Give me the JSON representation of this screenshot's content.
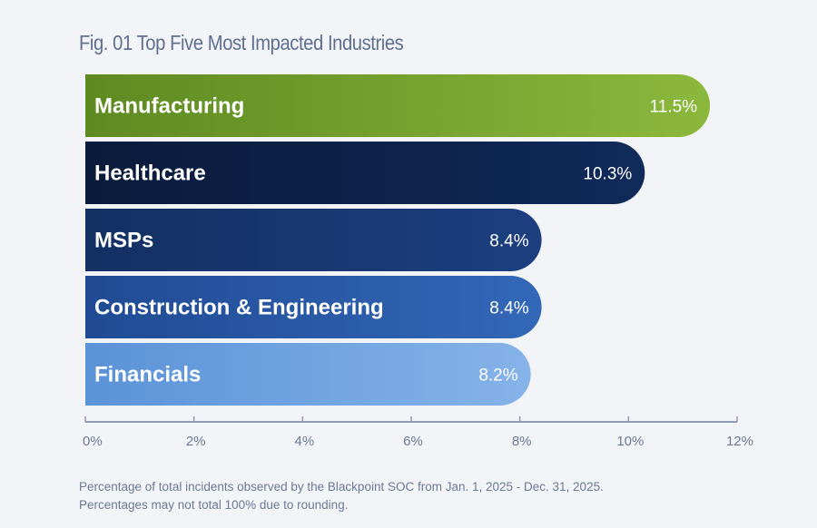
{
  "chart_data": {
    "type": "bar",
    "orientation": "horizontal",
    "title": "Fig. 01 Top Five Most Impacted Industries",
    "categories": [
      "Manufacturing",
      "Healthcare",
      "MSPs",
      "Construction & Engineering",
      "Financials"
    ],
    "values": [
      11.5,
      10.3,
      8.4,
      8.4,
      8.2
    ],
    "value_labels": [
      "11.5%",
      "10.3%",
      "8.4%",
      "8.4%",
      "8.2%"
    ],
    "colors": [
      [
        "#5e8a22",
        "#8bb83c"
      ],
      [
        "#0a1a3a",
        "#102a5a"
      ],
      [
        "#142f62",
        "#1c3f80"
      ],
      [
        "#204a94",
        "#3368b8"
      ],
      [
        "#5b93d8",
        "#86b3e8"
      ]
    ],
    "xlabel": "",
    "ylabel": "",
    "xlim": [
      0,
      12
    ],
    "xticks": [
      0,
      2,
      4,
      6,
      8,
      10,
      12
    ],
    "xtick_labels": [
      "0%",
      "2%",
      "4%",
      "6%",
      "8%",
      "10%",
      "12%"
    ],
    "grid": false,
    "legend": "none"
  },
  "footnote": {
    "line1": "Percentage of total incidents observed by the Blackpoint SOC from Jan. 1, 2025 - Dec. 31, 2025.",
    "line2": "Percentages may not total 100% due to rounding."
  },
  "axis_color": "#8f9bb3"
}
